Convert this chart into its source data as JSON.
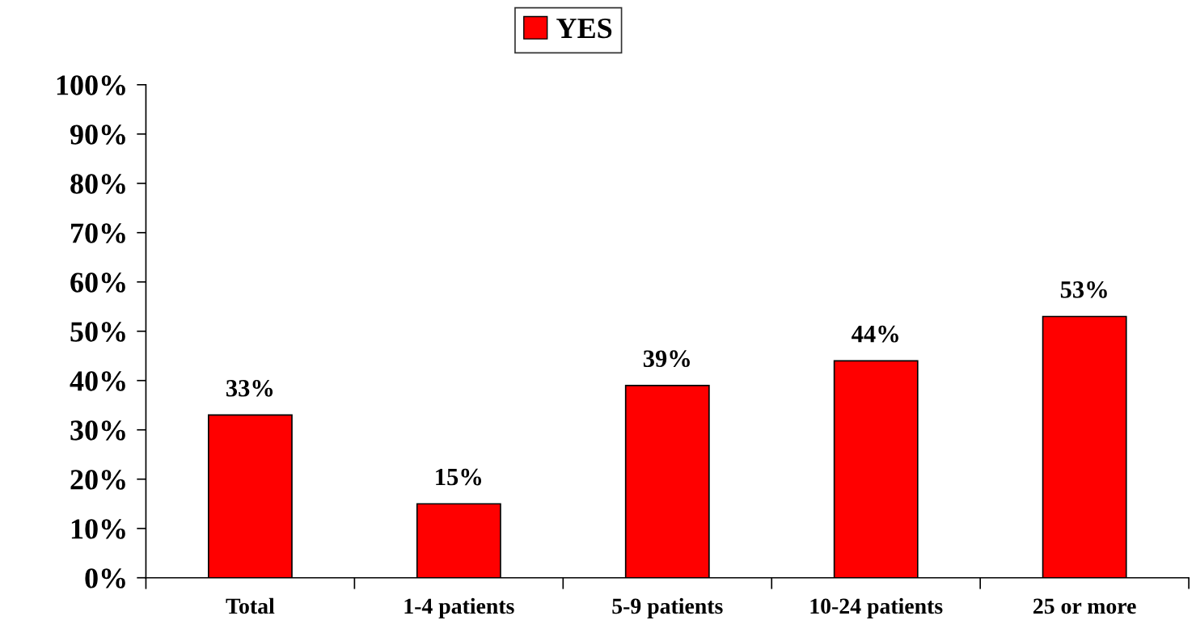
{
  "chart_data": {
    "type": "bar",
    "categories": [
      "Total",
      "1-4 patients",
      "5-9 patients",
      "10-24 patients",
      "25 or more"
    ],
    "series": [
      {
        "name": "YES",
        "color": "#ff0000",
        "values": [
          33,
          15,
          39,
          44,
          53
        ],
        "value_labels": [
          "33%",
          "15%",
          "39%",
          "44%",
          "53%"
        ]
      }
    ],
    "ylim": [
      0,
      100
    ],
    "yticks": [
      {
        "value": 0,
        "label": "0%"
      },
      {
        "value": 10,
        "label": "10%"
      },
      {
        "value": 20,
        "label": "20%"
      },
      {
        "value": 30,
        "label": "30%"
      },
      {
        "value": 40,
        "label": "40%"
      },
      {
        "value": 50,
        "label": "50%"
      },
      {
        "value": 60,
        "label": "60%"
      },
      {
        "value": 70,
        "label": "70%"
      },
      {
        "value": 80,
        "label": "80%"
      },
      {
        "value": 90,
        "label": "90%"
      },
      {
        "value": 100,
        "label": "100%"
      }
    ],
    "grid": false,
    "legend": "top"
  }
}
